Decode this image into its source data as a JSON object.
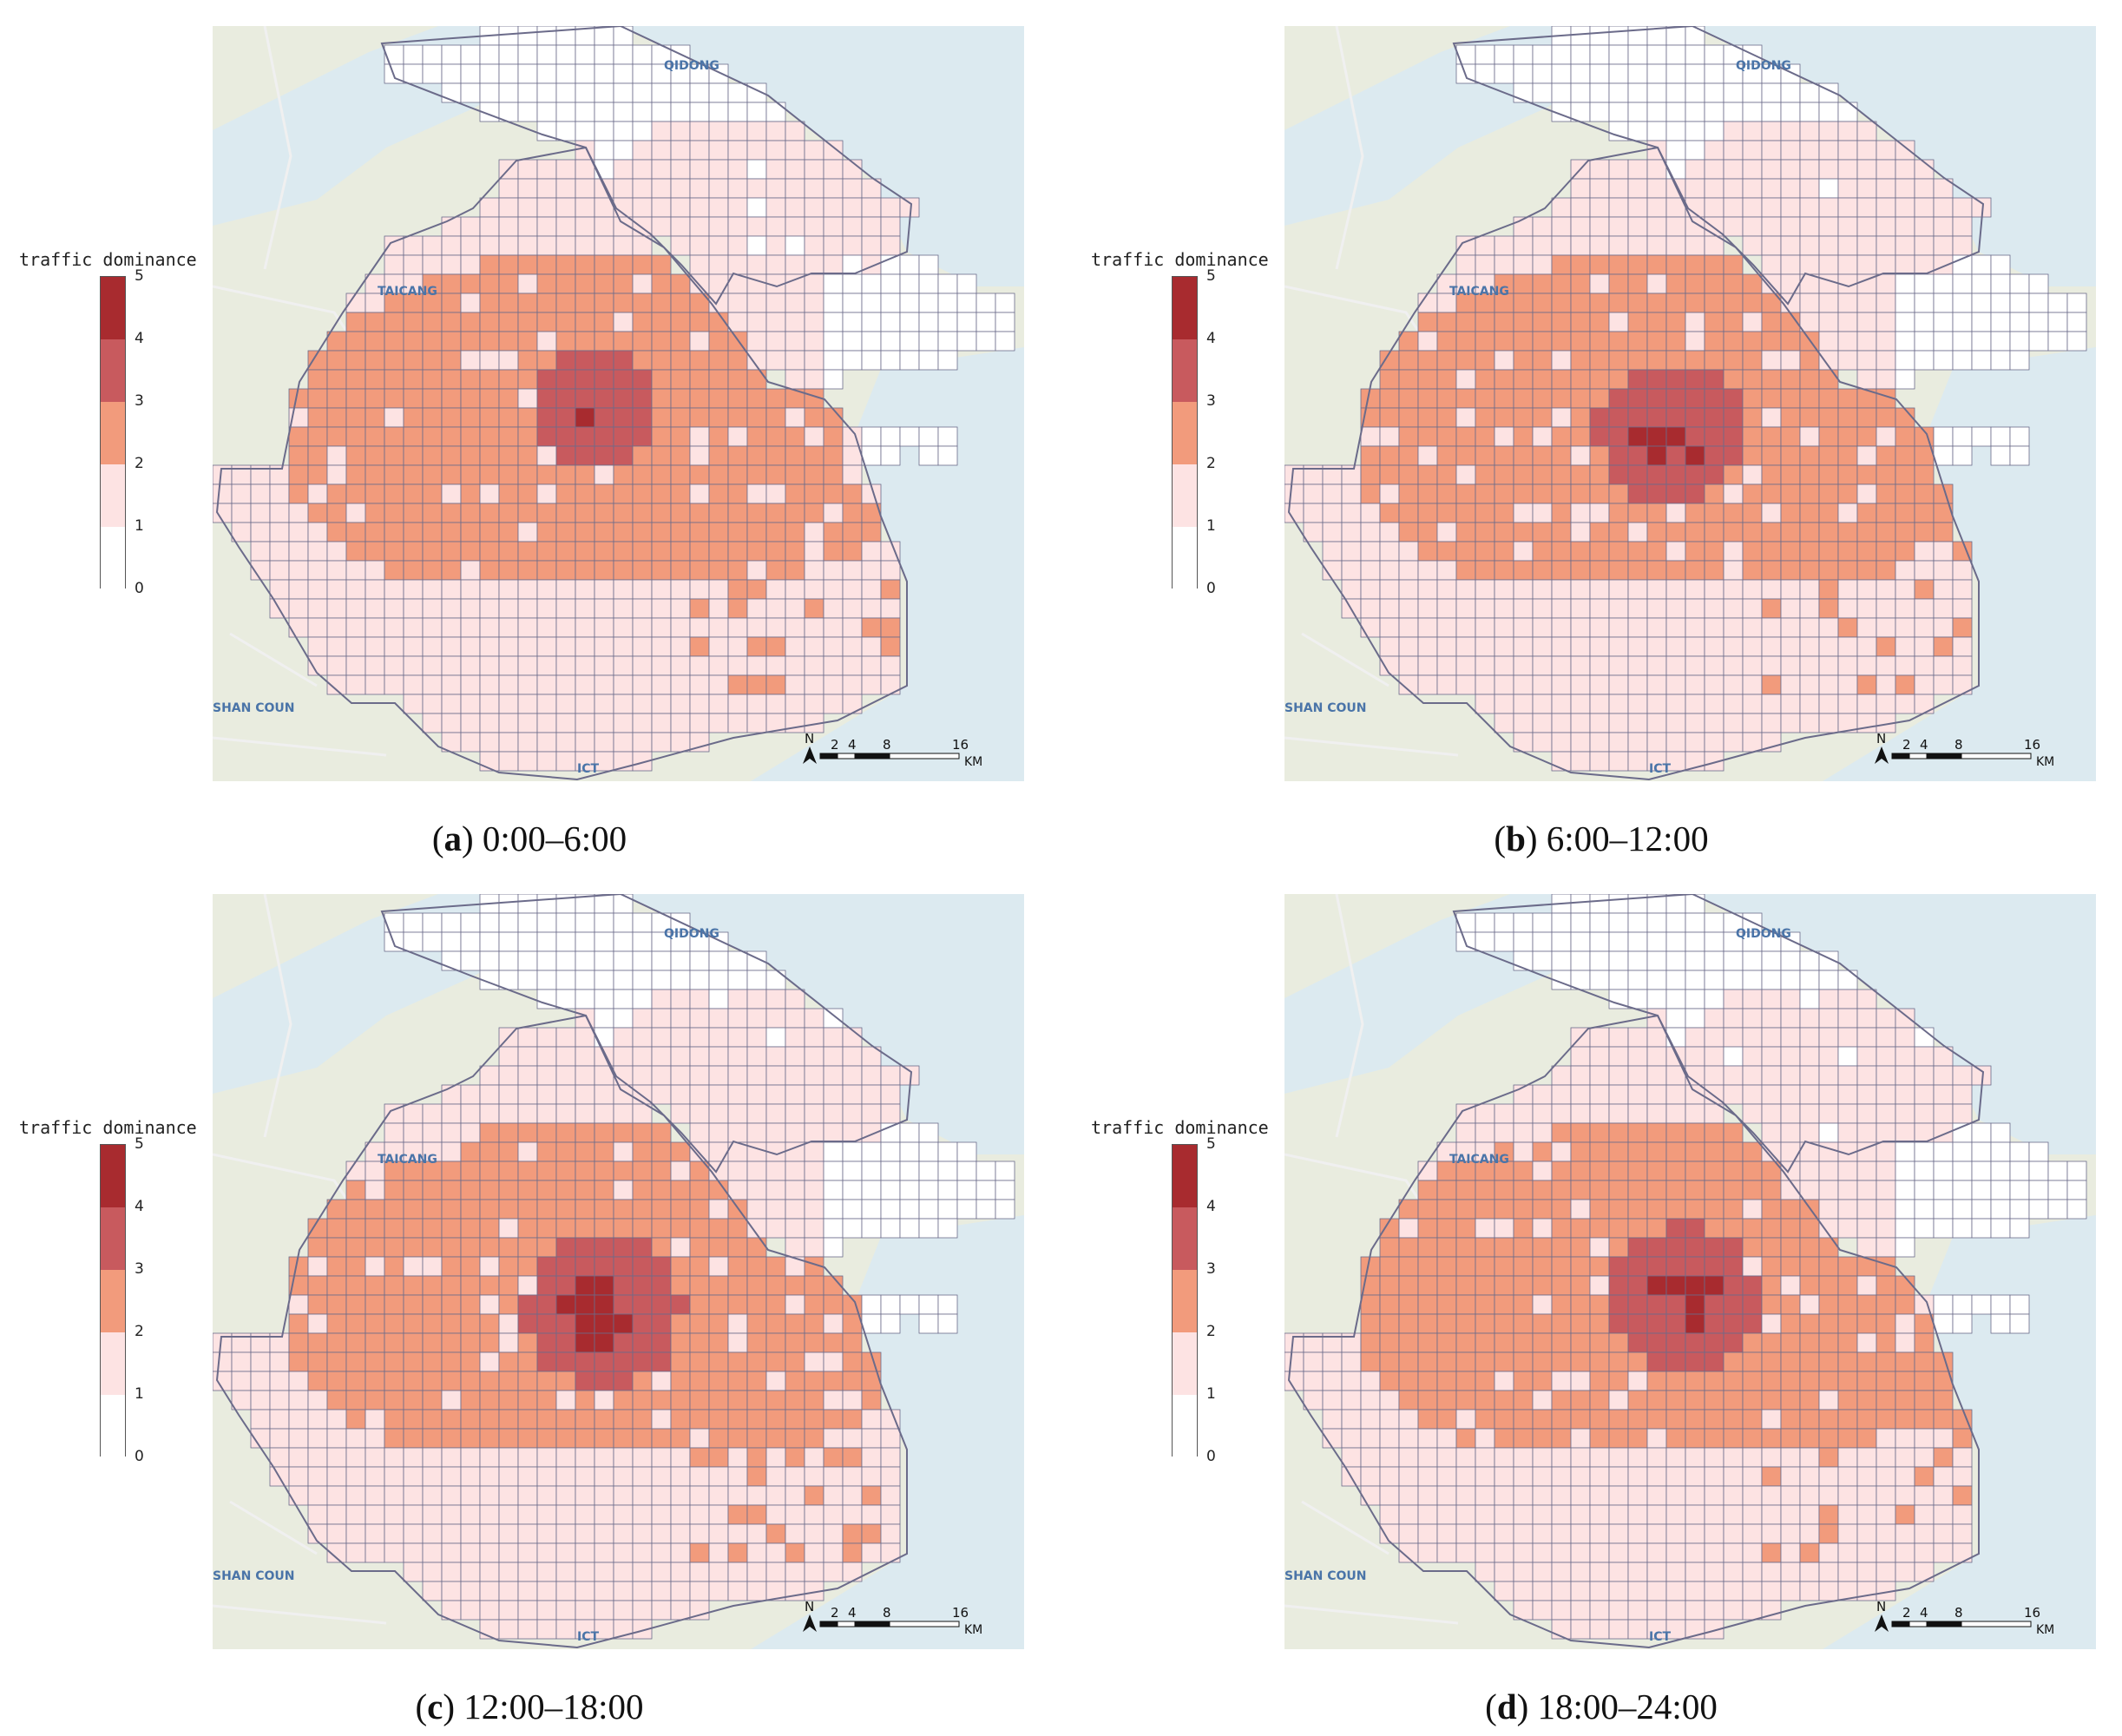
{
  "legend": {
    "title": "traffic dominance",
    "ticks": [
      "5",
      "4",
      "3",
      "2",
      "1",
      "0"
    ],
    "colors": [
      "#a82b2f",
      "#c85a5e",
      "#f29b7c",
      "#fde3e3",
      "#ffffff"
    ]
  },
  "scale": {
    "north": "N",
    "ticks": [
      "2",
      "4",
      "8",
      "16"
    ],
    "unit": "KM"
  },
  "map_labels": [
    "QIDONG",
    "TAICANG",
    "SHAN COUN",
    "ICT"
  ],
  "panels": [
    {
      "letter": "a",
      "period": "0:00–6:00"
    },
    {
      "letter": "b",
      "period": "6:00–12:00"
    },
    {
      "letter": "c",
      "period": "12:00–18:00"
    },
    {
      "letter": "d",
      "period": "18:00–24:00"
    }
  ],
  "colors": {
    "level1": "#fde3e3",
    "level2": "#f29b7c",
    "level3": "#c85a5e",
    "level4": "#a82b2f",
    "grid": "#6b6b8a",
    "water": "#dceaf0",
    "land": "#e9ecdf"
  }
}
